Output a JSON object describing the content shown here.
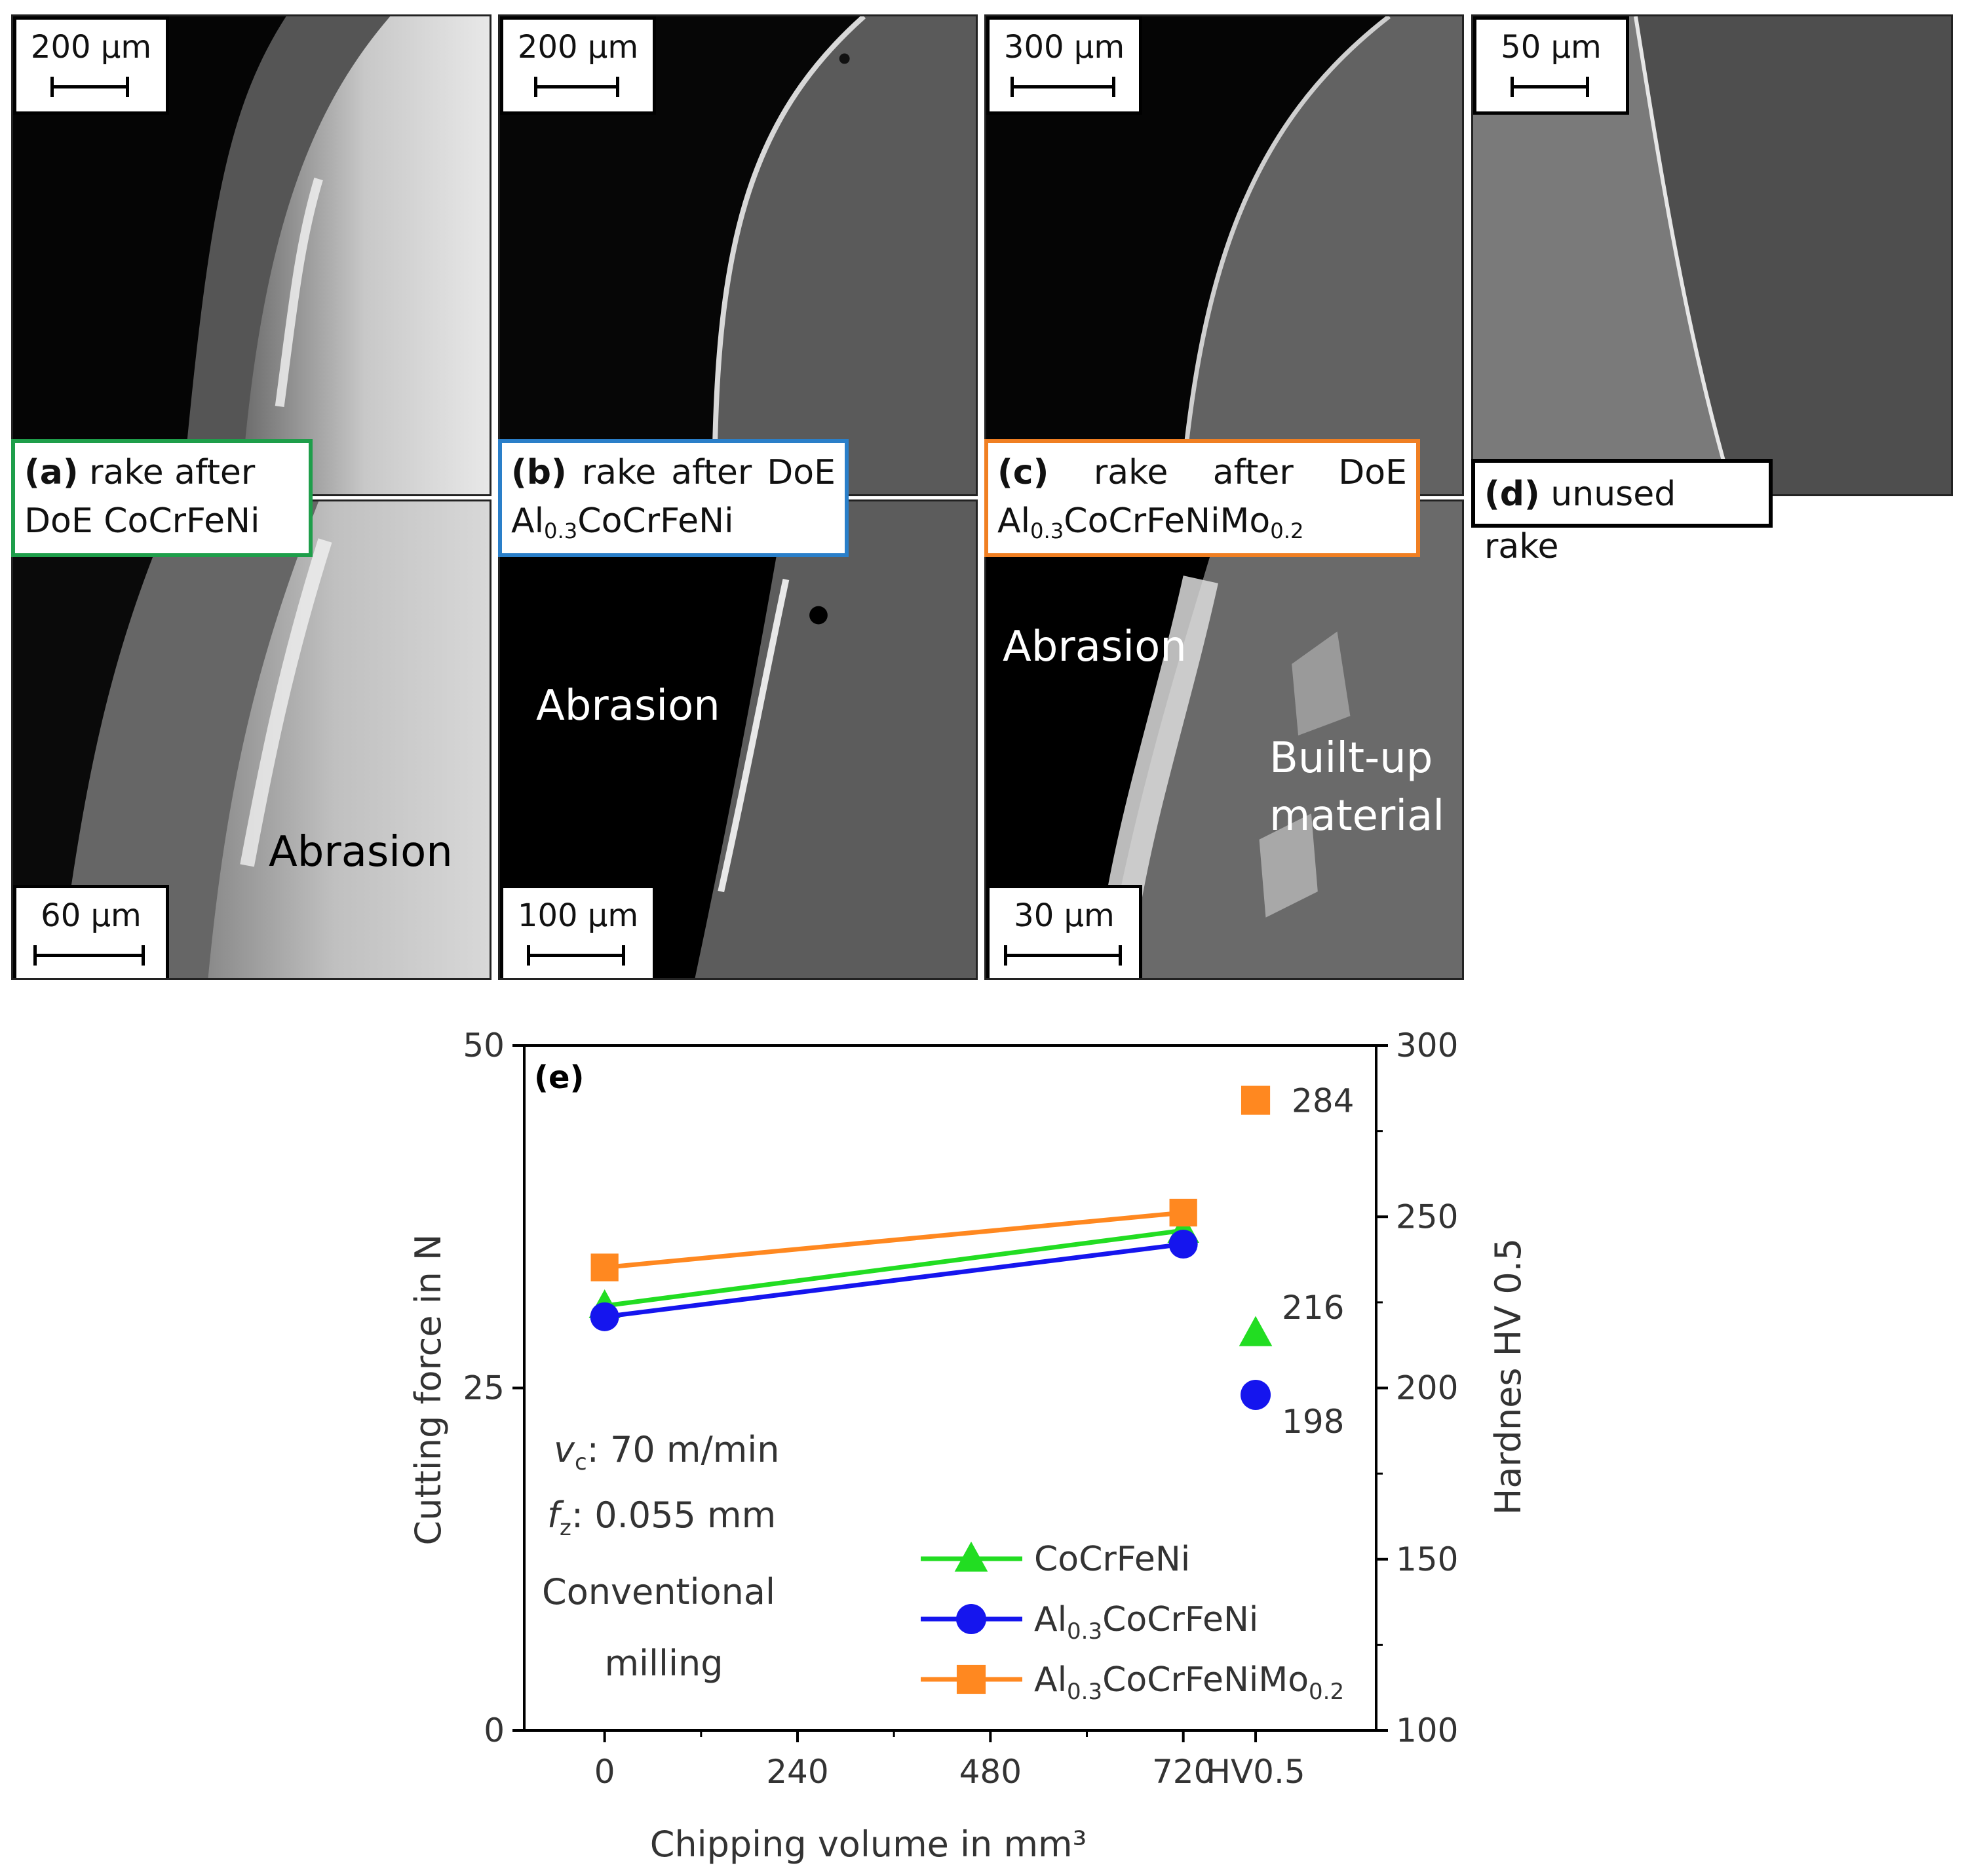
{
  "panels": {
    "a": {
      "scale_top": "200 µm",
      "scale_bottom": "60 µm",
      "caption_letter": "(a)",
      "caption_line1": "rake after",
      "caption_line2": "DoE CoCrFeNi",
      "label": "Abrasion",
      "frame_color": "#1e9e4a"
    },
    "b": {
      "scale_top": "200 µm",
      "scale_bottom": "100 µm",
      "caption_letter": "(b)",
      "caption_words": [
        "rake",
        "after",
        "DoE"
      ],
      "caption_line2_main": "Al",
      "caption_line2_sub": "0.3",
      "caption_line2_rest": "CoCrFeNi",
      "label": "Abrasion",
      "frame_color": "#2a7fc9"
    },
    "c": {
      "scale_top": "300 µm",
      "scale_bottom": "30 µm",
      "caption_letter": "(c)",
      "caption_words": [
        "rake",
        "after",
        "DoE"
      ],
      "caption_line2_main": "Al",
      "caption_line2_sub": "0.3",
      "caption_line2_rest": "CoCrFeNiMo",
      "caption_line2_sub2": "0.2",
      "label": "Abrasion",
      "label2_line1": "Built-up",
      "label2_line2": "material",
      "frame_color": "#f07f22"
    },
    "d": {
      "scale_top": "50 µm",
      "caption_letter": "(d)",
      "caption_text": "unused rake"
    }
  },
  "chart_data": {
    "type": "line",
    "panel_label": "(e)",
    "xlabel": "Chipping volume in mm³",
    "ylabel_left": "Cutting force in N",
    "ylabel_right": "Hardnes HV 0.5",
    "x_ticks": [
      "0",
      "240",
      "480",
      "720",
      "HV0.5"
    ],
    "y_left_ticks": [
      "0",
      "25",
      "50"
    ],
    "y_right_ticks": [
      "100",
      "150",
      "200",
      "250",
      "300"
    ],
    "x_range": [
      -100,
      960
    ],
    "y_left_range": [
      0,
      50
    ],
    "y_right_range": [
      100,
      300
    ],
    "annotations": [
      "v",
      "c",
      ": 70 m/min",
      "f",
      "z",
      ": 0.055 mm",
      "Conventional",
      "milling"
    ],
    "series": [
      {
        "name_main": "CoCrFeNi",
        "name_sub": "",
        "name_rest": "",
        "name_sub2": "",
        "color": "#22dd22",
        "marker": "triangle",
        "x": [
          0,
          720
        ],
        "y": [
          31,
          36.5
        ],
        "hardness": 216
      },
      {
        "name_main": "Al",
        "name_sub": "0.3",
        "name_rest": "CoCrFeNi",
        "name_sub2": "",
        "color": "#1515ee",
        "marker": "circle",
        "x": [
          0,
          720
        ],
        "y": [
          30.2,
          35.5
        ],
        "hardness": 198
      },
      {
        "name_main": "Al",
        "name_sub": "0.3",
        "name_rest": "CoCrFeNiMo",
        "name_sub2": "0.2",
        "color": "#ff8820",
        "marker": "square",
        "x": [
          0,
          720
        ],
        "y": [
          33.8,
          37.8
        ],
        "hardness": 284
      }
    ],
    "hardness_x": 810,
    "legend_position": "bottom-right",
    "grid": false
  }
}
